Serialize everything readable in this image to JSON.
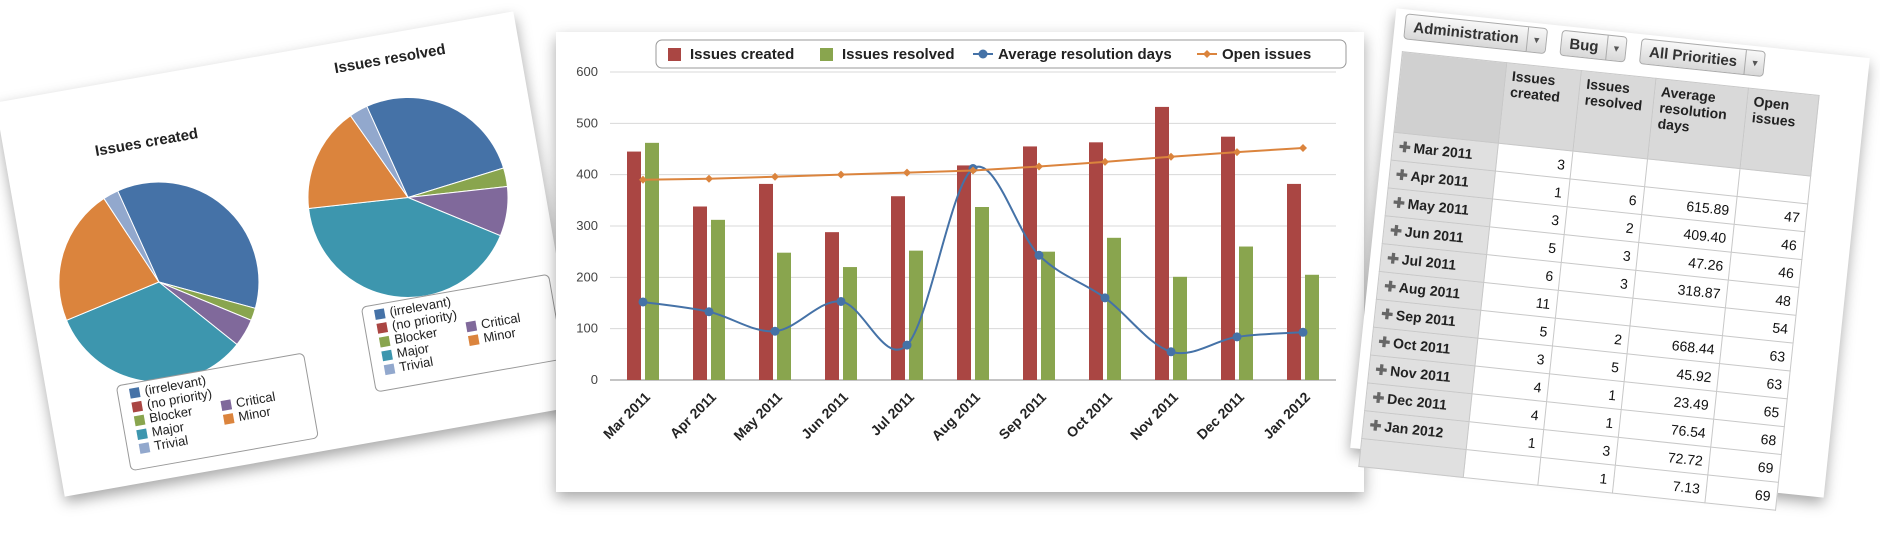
{
  "colors": {
    "irrelevant": "#4572a7",
    "no_priority": "#aa4643",
    "blocker": "#89a54e",
    "critical": "#80699b",
    "major": "#3d96ae",
    "minor": "#db843d",
    "trivial": "#92a8cd"
  },
  "chart_data": [
    {
      "type": "pie",
      "title": "Issues created",
      "slices": [
        {
          "name": "(irrelevant)",
          "value": 36
        },
        {
          "name": "Blocker",
          "value": 2
        },
        {
          "name": "Critical",
          "value": 4.5
        },
        {
          "name": "Major",
          "value": 33
        },
        {
          "name": "Minor",
          "value": 22
        },
        {
          "name": "Trivial",
          "value": 2.5
        }
      ],
      "legend": [
        "(irrelevant)",
        "(no priority)",
        "Blocker",
        "Critical",
        "Major",
        "Minor",
        "Trivial"
      ]
    },
    {
      "type": "pie",
      "title": "Issues resolved",
      "slices": [
        {
          "name": "(irrelevant)",
          "value": 27
        },
        {
          "name": "Blocker",
          "value": 3
        },
        {
          "name": "Critical",
          "value": 8
        },
        {
          "name": "Major",
          "value": 42
        },
        {
          "name": "Minor",
          "value": 17
        },
        {
          "name": "Trivial",
          "value": 3
        }
      ],
      "legend": [
        "(irrelevant)",
        "(no priority)",
        "Blocker",
        "Critical",
        "Major",
        "Minor",
        "Trivial"
      ]
    },
    {
      "type": "bar",
      "categories": [
        "Mar 2011",
        "Apr 2011",
        "May 2011",
        "Jun 2011",
        "Jul 2011",
        "Aug 2011",
        "Sep 2011",
        "Oct 2011",
        "Nov 2011",
        "Dec 2011",
        "Jan 2012"
      ],
      "series": [
        {
          "name": "Issues created",
          "type": "bar",
          "color": "#aa4643",
          "values": [
            445,
            338,
            382,
            288,
            358,
            418,
            455,
            463,
            532,
            474,
            382
          ]
        },
        {
          "name": "Issues resolved",
          "type": "bar",
          "color": "#89a54e",
          "values": [
            462,
            312,
            248,
            220,
            252,
            337,
            250,
            277,
            201,
            260,
            205
          ]
        },
        {
          "name": "Average resolution days",
          "type": "line",
          "color": "#4572a7",
          "values": [
            152,
            133,
            95,
            153,
            68,
            412,
            243,
            160,
            55,
            84,
            93
          ]
        },
        {
          "name": "Open issues",
          "type": "line",
          "color": "#db843d",
          "values": [
            390,
            392,
            396,
            400,
            404,
            408,
            416,
            425,
            435,
            444,
            452
          ]
        }
      ],
      "ylim": [
        0,
        600
      ],
      "yticks": [
        0,
        100,
        200,
        300,
        400,
        500,
        600
      ],
      "grid": true,
      "legend_position": "top"
    }
  ],
  "table": {
    "filters": [
      {
        "label": "Administration"
      },
      {
        "label": "Bug"
      },
      {
        "label": "All Priorities"
      }
    ],
    "headers": [
      "Issues created",
      "Issues resolved",
      "Average resolution days",
      "Open issues"
    ],
    "rows": [
      {
        "label": "Mar 2011",
        "created": "3",
        "resolved": "",
        "avg": "",
        "open": ""
      },
      {
        "label": "Apr 2011",
        "created": "1",
        "resolved": "6",
        "avg": "615.89",
        "open": "47"
      },
      {
        "label": "May 2011",
        "created": "3",
        "resolved": "2",
        "avg": "409.40",
        "open": "46"
      },
      {
        "label": "Jun 2011",
        "created": "5",
        "resolved": "3",
        "avg": "47.26",
        "open": "46"
      },
      {
        "label": "Jul 2011",
        "created": "6",
        "resolved": "3",
        "avg": "318.87",
        "open": "48"
      },
      {
        "label": "Aug 2011",
        "created": "11",
        "resolved": "",
        "avg": "",
        "open": "54"
      },
      {
        "label": "Sep 2011",
        "created": "5",
        "resolved": "2",
        "avg": "668.44",
        "open": "63"
      },
      {
        "label": "Oct 2011",
        "created": "3",
        "resolved": "5",
        "avg": "45.92",
        "open": "63"
      },
      {
        "label": "Nov 2011",
        "created": "4",
        "resolved": "1",
        "avg": "23.49",
        "open": "65"
      },
      {
        "label": "Dec 2011",
        "created": "4",
        "resolved": "1",
        "avg": "76.54",
        "open": "68"
      },
      {
        "label": "Jan 2012",
        "created": "1",
        "resolved": "3",
        "avg": "72.72",
        "open": "69"
      },
      {
        "label": "",
        "created": "",
        "resolved": "1",
        "avg": "7.13",
        "open": "69"
      }
    ]
  }
}
